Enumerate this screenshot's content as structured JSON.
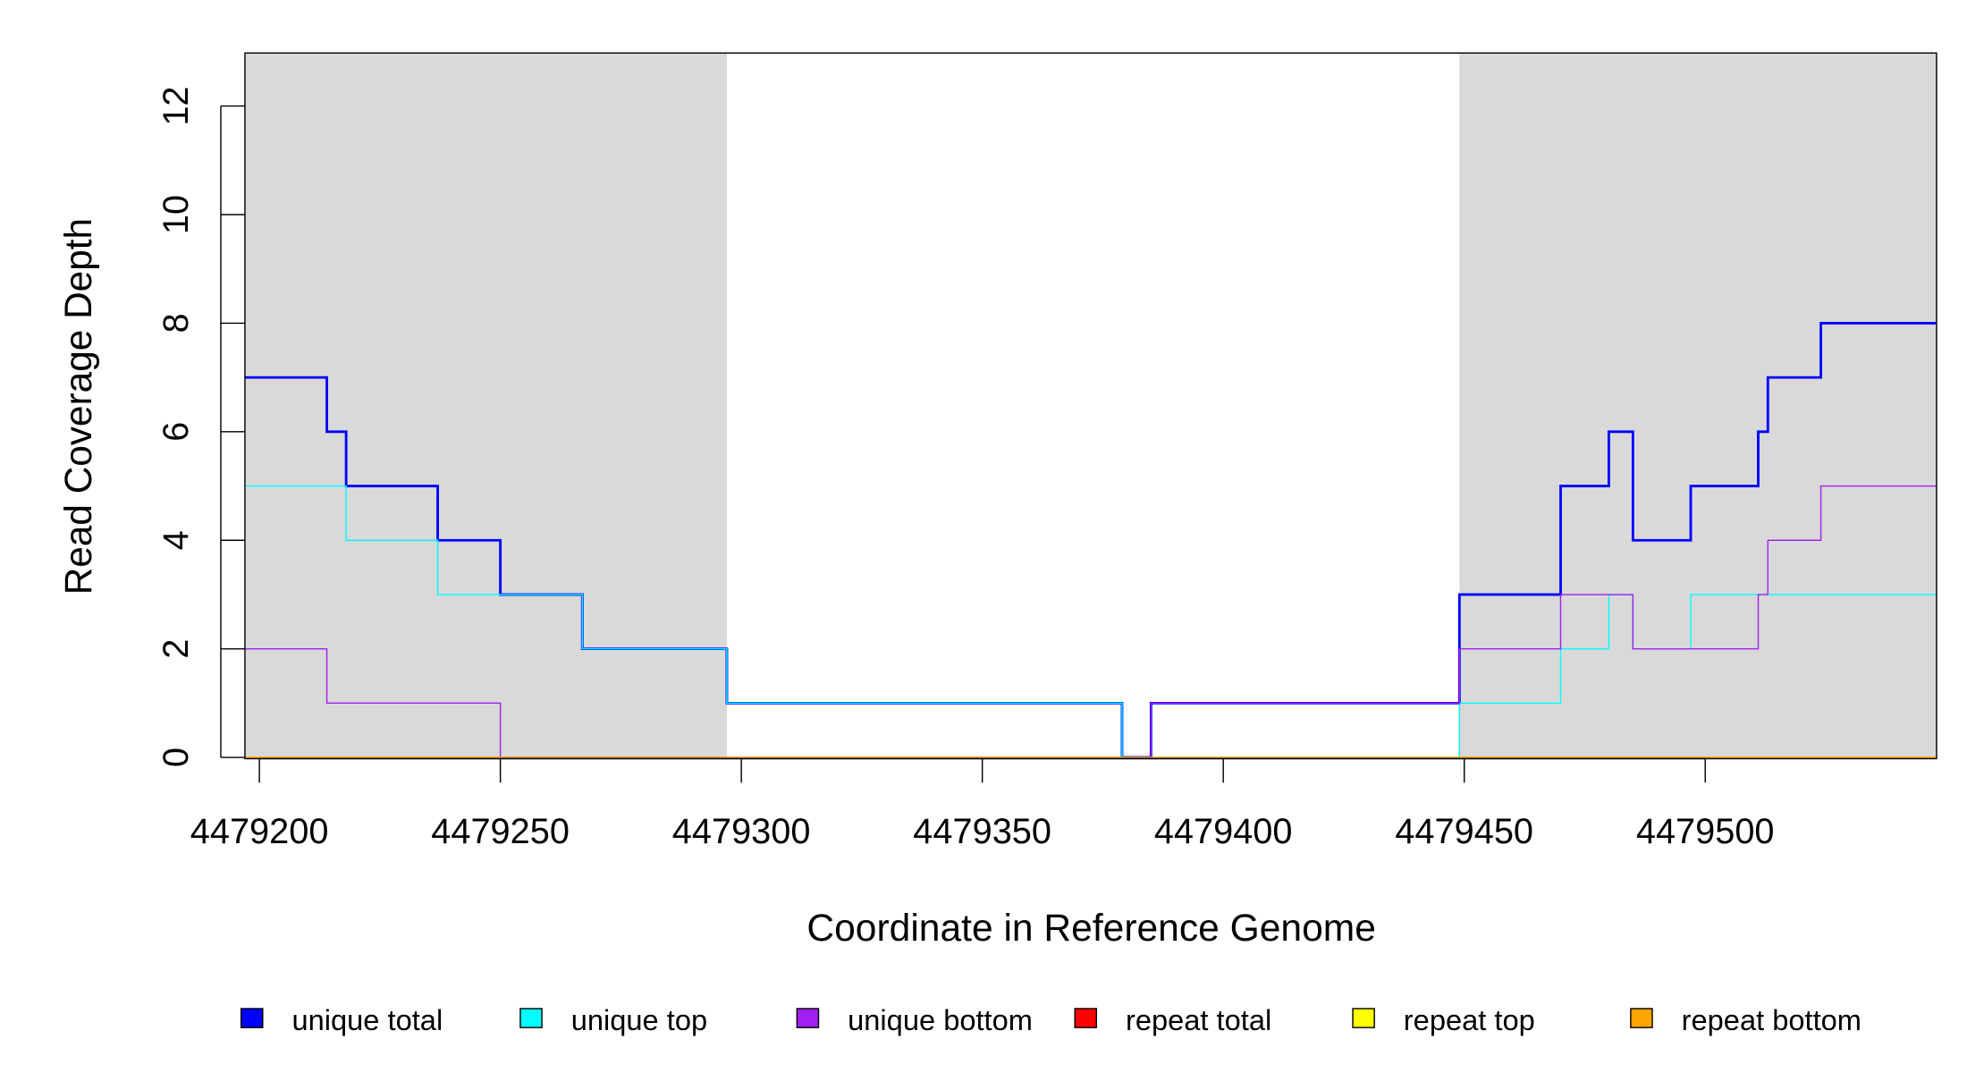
{
  "chart_data": {
    "type": "line",
    "step": true,
    "title": "",
    "xlabel": "Coordinate in Reference Genome",
    "ylabel": "Read Coverage Depth",
    "xlim": [
      4479197,
      4479548
    ],
    "ylim": [
      0,
      13
    ],
    "xticks": [
      4479200,
      4479250,
      4479300,
      4479350,
      4479400,
      4479450,
      4479500
    ],
    "xtick_labels": [
      "4479200",
      "4479250",
      "4479300",
      "4479350",
      "4479400",
      "4479450",
      "4479500"
    ],
    "yticks": [
      0,
      2,
      4,
      6,
      8,
      10,
      12
    ],
    "ytick_labels": [
      "0",
      "2",
      "4",
      "6",
      "8",
      "10",
      "12"
    ],
    "shaded_regions": [
      [
        4479197,
        4479297
      ],
      [
        4479449,
        4479548
      ]
    ],
    "shade_color": "#d9d9d9",
    "breaks": [
      4479197,
      4479214,
      4479218,
      4479237,
      4479250,
      4479267,
      4479297,
      4479379,
      4479385,
      4479449,
      4479470,
      4479480,
      4479485,
      4479497,
      4479511,
      4479513,
      4479524,
      4479548
    ],
    "series": [
      {
        "name": "unique total",
        "color": "#0000ff",
        "width": 2,
        "values": [
          7,
          6,
          5,
          4,
          3,
          2,
          1,
          0,
          1,
          3,
          5,
          6,
          4,
          5,
          6,
          7,
          8
        ]
      },
      {
        "name": "unique top",
        "color": "#00ffff",
        "width": 1,
        "values": [
          5,
          5,
          4,
          3,
          3,
          2,
          1,
          0,
          0,
          1,
          2,
          3,
          2,
          3,
          3,
          3,
          3
        ]
      },
      {
        "name": "unique bottom",
        "color": "#a020f0",
        "width": 1,
        "values": [
          2,
          1,
          1,
          1,
          0,
          0,
          0,
          0,
          1,
          2,
          3,
          3,
          2,
          2,
          3,
          4,
          5
        ]
      },
      {
        "name": "repeat total",
        "color": "#ff0000",
        "width": 1,
        "values": [
          0,
          0,
          0,
          0,
          0,
          0,
          0,
          0,
          0,
          0,
          0,
          0,
          0,
          0,
          0,
          0,
          0
        ]
      },
      {
        "name": "repeat top",
        "color": "#ffff00",
        "width": 1,
        "values": [
          0,
          0,
          0,
          0,
          0,
          0,
          0,
          0,
          0,
          0,
          0,
          0,
          0,
          0,
          0,
          0,
          0
        ]
      },
      {
        "name": "repeat bottom",
        "color": "#ffa500",
        "width": 1,
        "values": [
          0,
          0,
          0,
          0,
          0,
          0,
          0,
          0,
          0,
          0,
          0,
          0,
          0,
          0,
          0,
          0,
          0
        ]
      }
    ],
    "legend": [
      "unique total",
      "unique top",
      "unique bottom",
      "repeat total",
      "repeat top",
      "repeat bottom"
    ],
    "legend_placement": "bottom"
  }
}
